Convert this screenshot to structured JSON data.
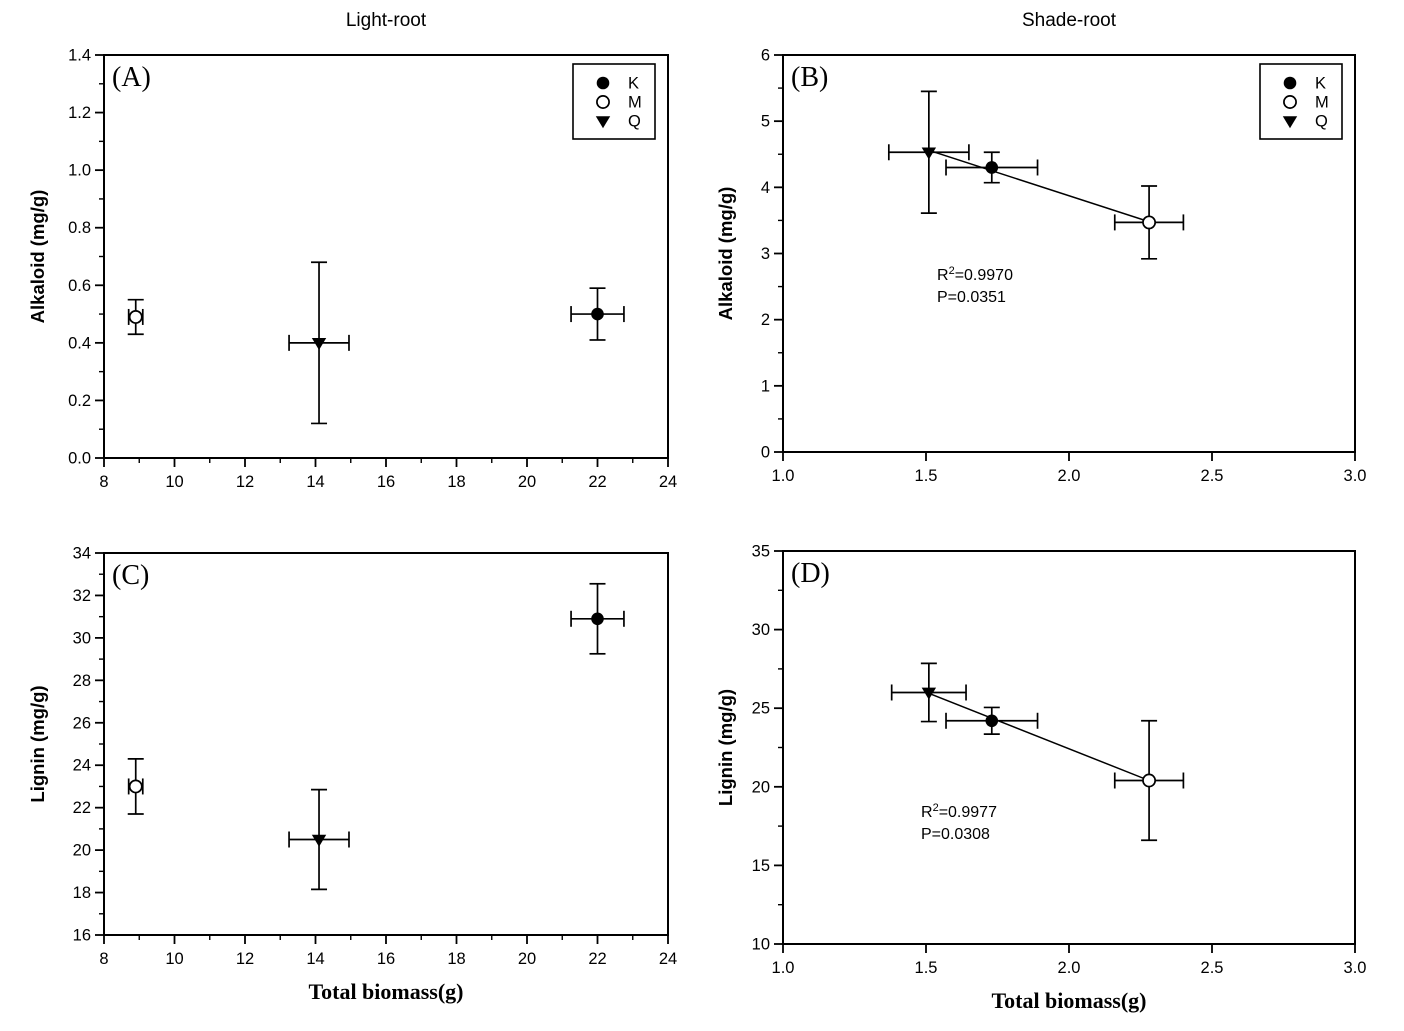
{
  "figure": {
    "background": "#ffffff",
    "ink": "#000000"
  },
  "legend": {
    "entries": [
      {
        "marker": "filled-circle",
        "label": "K"
      },
      {
        "marker": "open-circle",
        "label": "M"
      },
      {
        "marker": "filled-triangle-down",
        "label": "Q"
      }
    ]
  },
  "chart_data": [
    {
      "panel": "A",
      "type": "scatter",
      "panel_label": "(A)",
      "title": "Light-root",
      "xlabel": "",
      "ylabel": "Alkaloid (mg/g)",
      "xlim": [
        8,
        24
      ],
      "ylim": [
        0,
        1.4
      ],
      "xtick_labels": [
        "8",
        "10",
        "12",
        "14",
        "16",
        "18",
        "20",
        "22",
        "24"
      ],
      "ytick_labels": [
        "0.0",
        "0.2",
        "0.4",
        "0.6",
        "0.8",
        "1.0",
        "1.2",
        "1.4"
      ],
      "show_legend": true,
      "series": [
        {
          "name": "K",
          "marker": "filled-circle",
          "points": [
            {
              "x": 22.0,
              "y": 0.5,
              "xerr": 0.75,
              "yerr": 0.09
            }
          ]
        },
        {
          "name": "M",
          "marker": "open-circle",
          "points": [
            {
              "x": 8.9,
              "y": 0.49,
              "xerr": 0.2,
              "yerr": 0.06
            }
          ]
        },
        {
          "name": "Q",
          "marker": "filled-triangle-down",
          "points": [
            {
              "x": 14.1,
              "y": 0.4,
              "xerr": 0.85,
              "yerr": 0.28
            }
          ]
        }
      ],
      "regression": null,
      "annotation": null
    },
    {
      "panel": "B",
      "type": "scatter",
      "panel_label": "(B)",
      "title": "Shade-root",
      "xlabel": "",
      "ylabel": "Alkaloid (mg/g)",
      "xlim": [
        1.0,
        3.0
      ],
      "ylim": [
        0,
        6
      ],
      "xtick_labels": [
        "1.0",
        "1.5",
        "2.0",
        "2.5",
        "3.0"
      ],
      "ytick_labels": [
        "0",
        "1",
        "2",
        "3",
        "4",
        "5",
        "6"
      ],
      "show_legend": true,
      "series": [
        {
          "name": "K",
          "marker": "filled-circle",
          "points": [
            {
              "x": 1.73,
              "y": 4.3,
              "xerr": 0.16,
              "yerr": 0.23
            }
          ]
        },
        {
          "name": "M",
          "marker": "open-circle",
          "points": [
            {
              "x": 2.28,
              "y": 3.47,
              "xerr": 0.12,
              "yerr": 0.55
            }
          ]
        },
        {
          "name": "Q",
          "marker": "filled-triangle-down",
          "points": [
            {
              "x": 1.51,
              "y": 4.53,
              "xerr": 0.14,
              "yerr": 0.92
            }
          ]
        }
      ],
      "regression": {
        "x1": 1.51,
        "y1": 4.56,
        "x2": 2.28,
        "y2": 3.48
      },
      "annotation": {
        "r_squared": "0.9970",
        "p_value": "0.0351"
      }
    },
    {
      "panel": "C",
      "type": "scatter",
      "panel_label": "(C)",
      "title": "",
      "xlabel": "Total biomass(g)",
      "ylabel": "Lignin (mg/g)",
      "xlim": [
        8,
        24
      ],
      "ylim": [
        16,
        34
      ],
      "xtick_labels": [
        "8",
        "10",
        "12",
        "14",
        "16",
        "18",
        "20",
        "22",
        "24"
      ],
      "ytick_labels": [
        "16",
        "18",
        "20",
        "22",
        "24",
        "26",
        "28",
        "30",
        "32",
        "34"
      ],
      "show_legend": false,
      "series": [
        {
          "name": "K",
          "marker": "filled-circle",
          "points": [
            {
              "x": 22.0,
              "y": 30.9,
              "xerr": 0.75,
              "yerr": 1.65
            }
          ]
        },
        {
          "name": "M",
          "marker": "open-circle",
          "points": [
            {
              "x": 8.9,
              "y": 23.0,
              "xerr": 0.2,
              "yerr": 1.3
            }
          ]
        },
        {
          "name": "Q",
          "marker": "filled-triangle-down",
          "points": [
            {
              "x": 14.1,
              "y": 20.5,
              "xerr": 0.85,
              "yerr": 2.35
            }
          ]
        }
      ],
      "regression": null,
      "annotation": null
    },
    {
      "panel": "D",
      "type": "scatter",
      "panel_label": "(D)",
      "title": "",
      "xlabel": "Total biomass(g)",
      "ylabel": "Lignin (mg/g)",
      "xlim": [
        1.0,
        3.0
      ],
      "ylim": [
        10,
        35
      ],
      "xtick_labels": [
        "1.0",
        "1.5",
        "2.0",
        "2.5",
        "3.0"
      ],
      "ytick_labels": [
        "10",
        "15",
        "20",
        "25",
        "30",
        "35"
      ],
      "show_legend": false,
      "series": [
        {
          "name": "K",
          "marker": "filled-circle",
          "points": [
            {
              "x": 1.73,
              "y": 24.2,
              "xerr": 0.16,
              "yerr": 0.85
            }
          ]
        },
        {
          "name": "M",
          "marker": "open-circle",
          "points": [
            {
              "x": 2.28,
              "y": 20.4,
              "xerr": 0.12,
              "yerr": 3.8
            }
          ]
        },
        {
          "name": "Q",
          "marker": "filled-triangle-down",
          "points": [
            {
              "x": 1.51,
              "y": 26.0,
              "xerr": 0.13,
              "yerr": 1.85
            }
          ]
        }
      ],
      "regression": {
        "x1": 1.51,
        "y1": 25.95,
        "x2": 2.28,
        "y2": 20.4
      },
      "annotation": {
        "r_squared": "0.9977",
        "p_value": "0.0308"
      }
    }
  ]
}
